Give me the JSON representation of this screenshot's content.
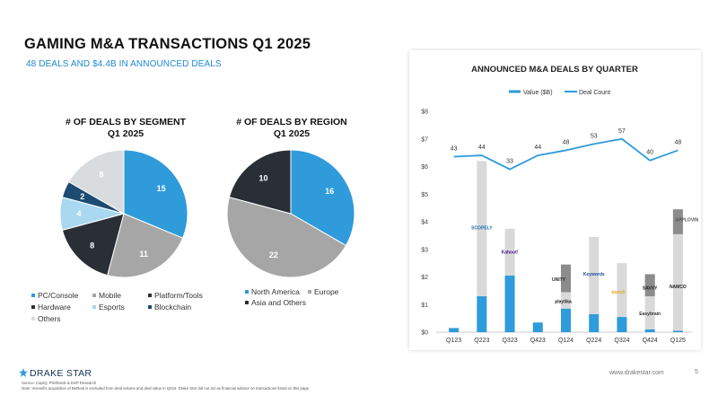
{
  "header": {
    "title": "GAMING M&A TRANSACTIONS Q1 2025",
    "subtitle": "48 DEALS AND $4.4B IN ANNOUNCED DEALS"
  },
  "colors": {
    "blue": "#2f9bdb",
    "gray": "#a6a6a6",
    "dark": "#2a2f36",
    "light_blue": "#a9d8f0",
    "navy": "#1d4b72",
    "light_gray": "#d9dcdf",
    "light_bar": "#d9d9d9",
    "line": "#2f9bdb"
  },
  "chart_data": [
    {
      "type": "pie",
      "title_line1": "# OF DEALS BY SEGMENT",
      "title_line2": "Q1 2025",
      "slices": [
        {
          "name": "PC/Console",
          "value": 15,
          "color_key": "blue"
        },
        {
          "name": "Mobile",
          "value": 11,
          "color_key": "gray"
        },
        {
          "name": "Platform/Tools",
          "value": 8,
          "color_key": "dark"
        },
        {
          "name": "Esports",
          "value": 4,
          "color_key": "light_blue"
        },
        {
          "name": "Blockchain",
          "value": 2,
          "color_key": "navy"
        },
        {
          "name": "Others",
          "value": 8,
          "color_key": "light_gray"
        }
      ],
      "legend": [
        "PC/Console",
        "Mobile",
        "Platform/Tools",
        "Hardware",
        "Esports",
        "Blockchain",
        "Others"
      ]
    },
    {
      "type": "pie",
      "title_line1": "# OF DEALS BY REGION",
      "title_line2": "Q1 2025",
      "slices": [
        {
          "name": "North America",
          "value": 16,
          "color_key": "blue"
        },
        {
          "name": "Europe",
          "value": 22,
          "color_key": "gray"
        },
        {
          "name": "Asia and Others",
          "value": 10,
          "color_key": "dark"
        }
      ],
      "legend": [
        "North America",
        "Europe",
        "Asia and Others"
      ]
    },
    {
      "type": "bar",
      "title": "ANNOUNCED M&A DEALS BY QUARTER",
      "legend": {
        "value": "Value ($B)",
        "count": "Deal Count"
      },
      "categories": [
        "Q123",
        "Q223",
        "Q323",
        "Q423",
        "Q124",
        "Q224",
        "Q324",
        "Q424",
        "Q125"
      ],
      "y_ticks": [
        "$0",
        "$1",
        "$2",
        "$3",
        "$4",
        "$5",
        "$6",
        "$7",
        "$8"
      ],
      "ylim": [
        0,
        8
      ],
      "value_bn": [
        0.15,
        1.3,
        2.05,
        0.35,
        0.85,
        0.65,
        0.55,
        0.1,
        0.05
      ],
      "total_bn": [
        0.15,
        6.2,
        3.75,
        0.35,
        2.45,
        3.45,
        2.5,
        2.1,
        4.45
      ],
      "deal_count": [
        43,
        44,
        33,
        44,
        48,
        53,
        57,
        40,
        48
      ],
      "logos": [
        {
          "quarter": "Q223",
          "text": "SCOPELY",
          "color": "#1d6fb5"
        },
        {
          "quarter": "Q323",
          "text": "Kahoot!",
          "color": "#46178f"
        },
        {
          "quarter": "Q124",
          "text": "UNITY",
          "color": "#222"
        },
        {
          "quarter": "Q124",
          "text": "playtika",
          "color": "#222"
        },
        {
          "quarter": "Q224",
          "text": "Keywords",
          "color": "#1d4b9a"
        },
        {
          "quarter": "Q324",
          "text": "bunch",
          "color": "#e8a020"
        },
        {
          "quarter": "Q424",
          "text": "SAVVY",
          "color": "#222"
        },
        {
          "quarter": "Q424",
          "text": "Easybrain",
          "color": "#333"
        },
        {
          "quarter": "Q125",
          "text": "APPLOVIN",
          "color": "#555"
        },
        {
          "quarter": "Q125",
          "text": "NAMCO",
          "color": "#222"
        }
      ]
    }
  ],
  "footer": {
    "brand": "DRAKE STAR",
    "source": "Source: CapIQ, Pitchbook & DSP Research",
    "note": "Note: Vivendi's acquisition of BeReal is excluded from deal volume and deal value in Q224. Drake Star did not act as financial advisor on transactions listed on this page",
    "site": "www.drakestar.com",
    "page": "5"
  }
}
